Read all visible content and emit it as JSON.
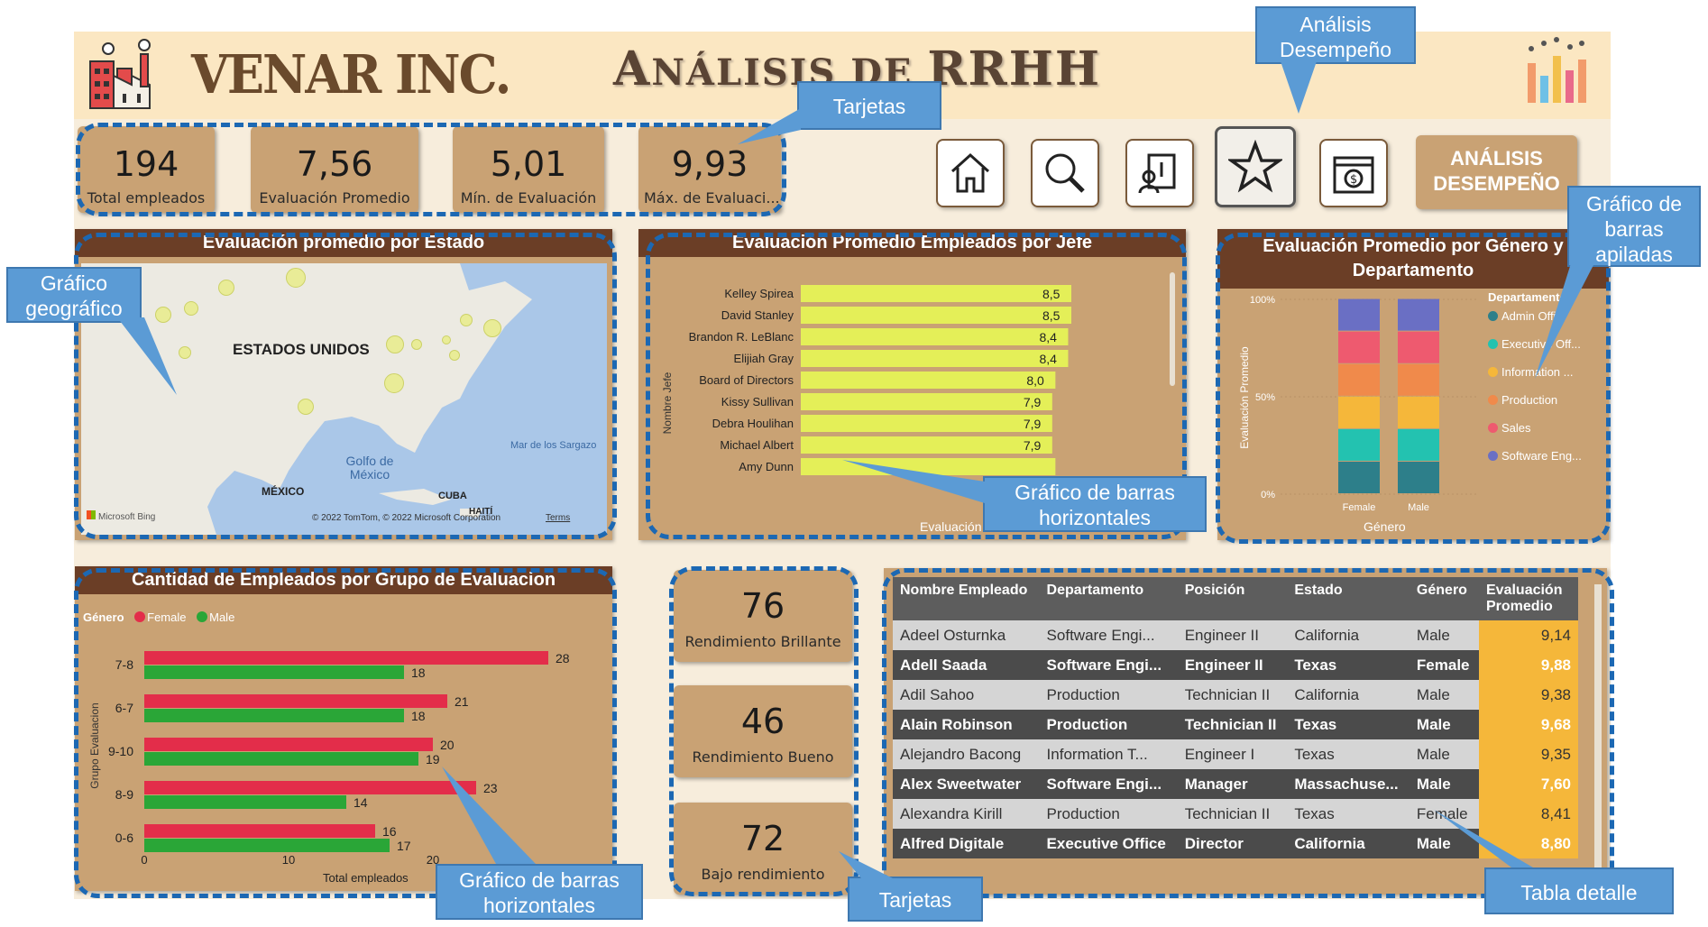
{
  "header": {
    "company": "VENAR INC.",
    "title_big1": "A",
    "title_small1": "NÁLISIS",
    "title_mid": " DE ",
    "title_big2": "RRHH"
  },
  "kpis": [
    {
      "value": "194",
      "label": "Total empleados"
    },
    {
      "value": "7,56",
      "label": "Evaluación Promedio"
    },
    {
      "value": "5,01",
      "label": "Mín. de Evaluación"
    },
    {
      "value": "9,93",
      "label": "Máx. de Evaluaci..."
    }
  ],
  "nav": {
    "buttons": [
      "home-icon",
      "search-icon",
      "report-icon",
      "star-icon",
      "calendar-money-icon"
    ],
    "desempeno_line1": "ANÁLISIS",
    "desempeno_line2": "DESEMPEÑO"
  },
  "map_panel": {
    "title": "Evaluación promedio por Estado",
    "labels": {
      "country": "ESTADOS UNIDOS",
      "gulf": "Golfo de México",
      "sea": "Mar de los Sargazo",
      "mexico": "MÉXICO",
      "cuba": "CUBA",
      "haiti": "HAITÍ",
      "bing": "Microsoft Bing",
      "copyright": "© 2022 TomTom, © 2022 Microsoft Corporation",
      "terms": "Terms"
    }
  },
  "boss_panel": {
    "title": "Evaluación Promedio Empleados por Jefe",
    "ylabel": "Nombre Jefe",
    "xlabel": "Evaluación Promedio"
  },
  "gender_panel": {
    "title": "Evaluación Promedio por Género y Departamento",
    "ylabel": "Evaluación Promedio",
    "xlabel": "Género",
    "legend_title": "Departamento",
    "legend": [
      "Admin Offi...",
      "Executive Off...",
      "Information ...",
      "Production",
      "Sales",
      "Software Eng..."
    ]
  },
  "group_panel": {
    "title": "Cantidad de Empleados por Grupo de Evaluacion",
    "legend_title": "Género",
    "legend_female": "Female",
    "legend_male": "Male",
    "ylabel": "Grupo Evaluacion",
    "xlabel": "Total empleados"
  },
  "perf_cards": [
    {
      "value": "76",
      "label": "Rendimiento Brillante"
    },
    {
      "value": "46",
      "label": "Rendimiento Bueno"
    },
    {
      "value": "72",
      "label": "Bajo rendimiento"
    }
  ],
  "table": {
    "headers": [
      "Nombre Empleado",
      "Departamento",
      "Posición",
      "Estado",
      "Género",
      "Evaluación Promedio"
    ],
    "rows": [
      [
        "Adeel Osturnka",
        "Software Engi...",
        "Engineer II",
        "California",
        "Male",
        "9,14"
      ],
      [
        "Adell Saada",
        "Software Engi...",
        "Engineer II",
        "Texas",
        "Female",
        "9,88"
      ],
      [
        "Adil Sahoo",
        "Production",
        "Technician II",
        "California",
        "Male",
        "9,38"
      ],
      [
        "Alain Robinson",
        "Production",
        "Technician II",
        "Texas",
        "Male",
        "9,68"
      ],
      [
        "Alejandro Bacong",
        "Information T...",
        "Engineer I",
        "Texas",
        "Male",
        "9,35"
      ],
      [
        "Alex Sweetwater",
        "Software Engi...",
        "Manager",
        "Massachuse...",
        "Male",
        "7,60"
      ],
      [
        "Alexandra Kirill",
        "Production",
        "Technician II",
        "Texas",
        "Female",
        "8,41"
      ],
      [
        "Alfred Digitale",
        "Executive Office",
        "Director",
        "California",
        "Male",
        "8,80"
      ]
    ]
  },
  "callouts": {
    "analisis": "Análisis Desempeño",
    "tarjetas_top": "Tarjetas",
    "barras_apiladas": "Gráfico de barras apiladas",
    "geografico": "Gráfico geográfico",
    "barras_h1": "Gráfico de barras horizontales",
    "barras_h2": "Gráfico de barras horizontales",
    "tarjetas_bottom": "Tarjetas",
    "tabla": "Tabla detalle"
  },
  "chart_data": [
    {
      "type": "bar",
      "title": "Evaluación Promedio Empleados por Jefe",
      "orientation": "horizontal",
      "categories": [
        "Kelley Spirea",
        "David Stanley",
        "Brandon R. LeBlanc",
        "Elijiah Gray",
        "Board of Directors",
        "Kissy Sullivan",
        "Debra Houlihan",
        "Michael Albert",
        "Amy Dunn"
      ],
      "values": [
        8.5,
        8.5,
        8.4,
        8.4,
        8.0,
        7.9,
        7.9,
        7.9,
        null
      ],
      "labels": [
        "8,5",
        "8,5",
        "8,4",
        "8,4",
        "8,0",
        "7,9",
        "7,9",
        "7,9",
        ""
      ],
      "xlabel": "Evaluación Promedio",
      "ylabel": "Nombre Jefe",
      "colors": {
        "bar": "#e4ef58"
      }
    },
    {
      "type": "bar",
      "title": "Evaluación Promedio por Género y Departamento",
      "stacked": "percent",
      "categories": [
        "Female",
        "Male"
      ],
      "series": [
        {
          "name": "Admin Offi...",
          "values": [
            16.7,
            16.7
          ]
        },
        {
          "name": "Executive Off...",
          "values": [
            16.7,
            16.7
          ]
        },
        {
          "name": "Information ...",
          "values": [
            16.7,
            16.7
          ]
        },
        {
          "name": "Production",
          "values": [
            16.7,
            16.7
          ]
        },
        {
          "name": "Sales",
          "values": [
            16.7,
            16.7
          ]
        },
        {
          "name": "Software Eng...",
          "values": [
            16.7,
            16.7
          ]
        }
      ],
      "ylim": [
        0,
        100
      ],
      "yticks": [
        "0%",
        "50%",
        "100%"
      ],
      "xlabel": "Género",
      "ylabel": "Evaluación Promedio",
      "colors": [
        "#2d7f8a",
        "#23c2b0",
        "#f5b73a",
        "#f08a4b",
        "#ee5a6f",
        "#6a6fc4"
      ]
    },
    {
      "type": "bar",
      "title": "Cantidad de Empleados por Grupo de Evaluacion",
      "orientation": "horizontal",
      "categories": [
        "7-8",
        "6-7",
        "9-10",
        "8-9",
        "0-6"
      ],
      "series": [
        {
          "name": "Female",
          "values": [
            28,
            21,
            20,
            23,
            16
          ]
        },
        {
          "name": "Male",
          "values": [
            18,
            18,
            19,
            14,
            17
          ]
        }
      ],
      "xlim": [
        0,
        30
      ],
      "xticks": [
        "0",
        "10",
        "20"
      ],
      "xlabel": "Total empleados",
      "ylabel": "Grupo Evaluacion",
      "colors": {
        "Female": "#e32d4a",
        "Male": "#2aa637"
      }
    }
  ]
}
